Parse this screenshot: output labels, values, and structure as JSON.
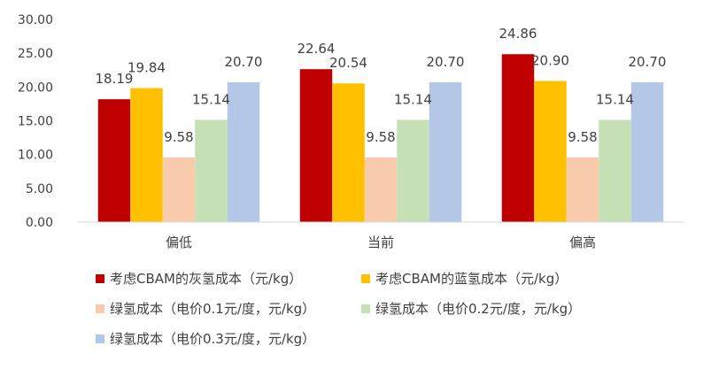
{
  "chart_data": {
    "type": "bar",
    "categories": [
      "偏低",
      "当前",
      "偏高"
    ],
    "series": [
      {
        "name": "考虑CBAM的灰氢成本（元/kg）",
        "values": [
          18.19,
          22.64,
          24.86
        ],
        "color": "#C00000"
      },
      {
        "name": "考虑CBAM的蓝氢成本（元/kg）",
        "values": [
          19.84,
          20.54,
          20.9
        ],
        "color": "#FFC000"
      },
      {
        "name": "绿氢成本（电价0.1元/度，元/kg）",
        "values": [
          9.58,
          9.58,
          9.58
        ],
        "color": "#F8CBAD"
      },
      {
        "name": "绿氢成本（电价0.2元/度，元/kg）",
        "values": [
          15.14,
          15.14,
          15.14
        ],
        "color": "#C5E0B4"
      },
      {
        "name": "绿氢成本（电价0.3元/度，元/kg）",
        "values": [
          20.7,
          20.7,
          20.7
        ],
        "color": "#B4C7E7"
      }
    ],
    "yticks": [
      "0.00",
      "5.00",
      "10.00",
      "15.00",
      "20.00",
      "25.00",
      "30.00"
    ],
    "ylim": [
      0,
      30
    ],
    "grid": false,
    "legend_position": "bottom",
    "title": "",
    "xlabel": "",
    "ylabel": ""
  }
}
